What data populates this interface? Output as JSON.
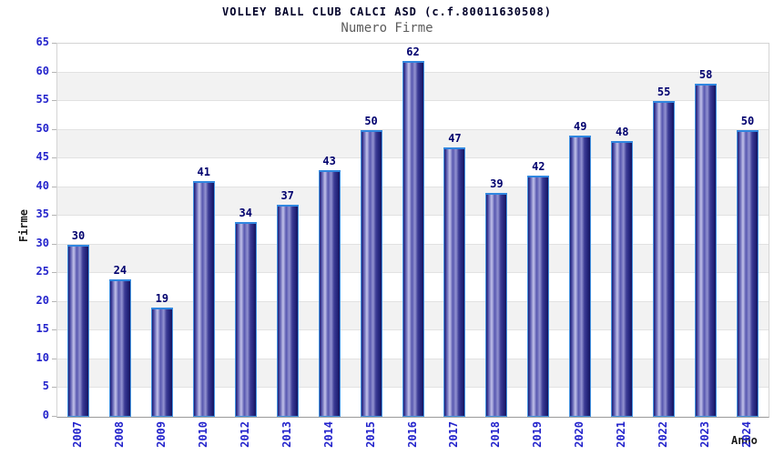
{
  "header": {
    "title": "VOLLEY BALL CLUB CALCI ASD (c.f.80011630508)",
    "subtitle": "Numero Firme"
  },
  "chart_data": {
    "type": "bar",
    "title": "VOLLEY BALL CLUB CALCI ASD (c.f.80011630508)",
    "subtitle": "Numero Firme",
    "categories": [
      "2007",
      "2008",
      "2009",
      "2010",
      "2012",
      "2013",
      "2014",
      "2015",
      "2016",
      "2017",
      "2018",
      "2019",
      "2020",
      "2021",
      "2022",
      "2023",
      "2024"
    ],
    "values": [
      30,
      24,
      19,
      41,
      34,
      37,
      43,
      50,
      62,
      47,
      39,
      42,
      49,
      48,
      55,
      58,
      50
    ],
    "xlabel": "Anno",
    "ylabel": "Firme",
    "ylim": [
      0,
      65
    ],
    "ytick_step": 5,
    "grid": "horizontal-bands-alternating",
    "legend": "none",
    "note_missing_year": "2011",
    "colors": {
      "bar_dark": "#1c1c72",
      "bar_highlight": "#c2c2ea",
      "bar_border": "#4595e2",
      "tick_label": "#2424cc",
      "value_label": "#00006e",
      "axis_title": "#1c1c1c",
      "title_color": "#000028",
      "subtitle_color": "#5c5c5c",
      "band_gray": "#f2f2f2",
      "band_white": "#ffffff",
      "gridline": "#e2e2e2",
      "plot_border": "#d4d4d4"
    }
  }
}
